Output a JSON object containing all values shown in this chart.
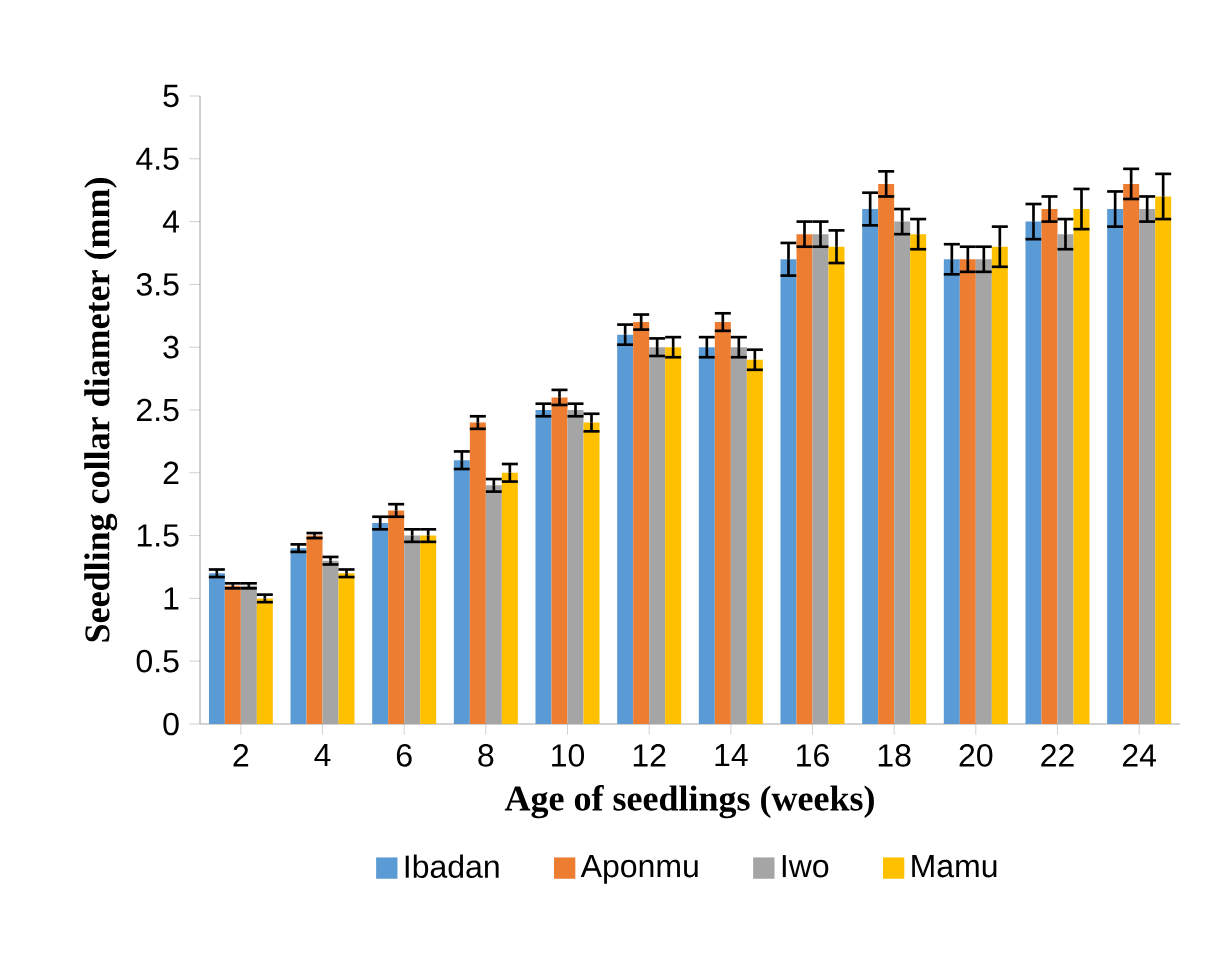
{
  "chart_data": {
    "type": "bar",
    "xlabel": "Age of seedlings (weeks)",
    "ylabel": "Seedling collar diameter (mm)",
    "categories": [
      "2",
      "4",
      "6",
      "8",
      "10",
      "12",
      "14",
      "16",
      "18",
      "20",
      "22",
      "24"
    ],
    "series": [
      {
        "name": "Ibadan",
        "color": "#5b9bd5",
        "values": [
          1.2,
          1.4,
          1.6,
          2.1,
          2.5,
          3.1,
          3.0,
          3.7,
          4.1,
          3.7,
          4.0,
          4.1
        ],
        "errors": [
          0.03,
          0.03,
          0.05,
          0.07,
          0.05,
          0.08,
          0.08,
          0.13,
          0.13,
          0.12,
          0.14,
          0.14
        ]
      },
      {
        "name": "Aponmu",
        "color": "#ed7d31",
        "values": [
          1.1,
          1.5,
          1.7,
          2.4,
          2.6,
          3.2,
          3.2,
          3.9,
          4.3,
          3.7,
          4.1,
          4.3
        ],
        "errors": [
          0.02,
          0.02,
          0.05,
          0.05,
          0.06,
          0.06,
          0.07,
          0.1,
          0.1,
          0.1,
          0.1,
          0.12
        ]
      },
      {
        "name": "Iwo",
        "color": "#a5a5a5",
        "values": [
          1.1,
          1.3,
          1.5,
          1.9,
          2.5,
          3.0,
          3.0,
          3.9,
          4.0,
          3.7,
          3.9,
          4.1
        ],
        "errors": [
          0.02,
          0.03,
          0.05,
          0.05,
          0.05,
          0.07,
          0.08,
          0.1,
          0.1,
          0.1,
          0.12,
          0.1
        ]
      },
      {
        "name": "Mamu",
        "color": "#ffc000",
        "values": [
          1.0,
          1.2,
          1.5,
          2.0,
          2.4,
          3.0,
          2.9,
          3.8,
          3.9,
          3.8,
          4.1,
          4.2
        ],
        "errors": [
          0.03,
          0.03,
          0.05,
          0.07,
          0.07,
          0.08,
          0.08,
          0.13,
          0.12,
          0.16,
          0.16,
          0.18
        ]
      }
    ],
    "ylim": [
      0,
      5
    ],
    "yticks": [
      0,
      0.5,
      1,
      1.5,
      2,
      2.5,
      3,
      3.5,
      4,
      4.5,
      5
    ],
    "grid": false,
    "legend": "bottom"
  }
}
